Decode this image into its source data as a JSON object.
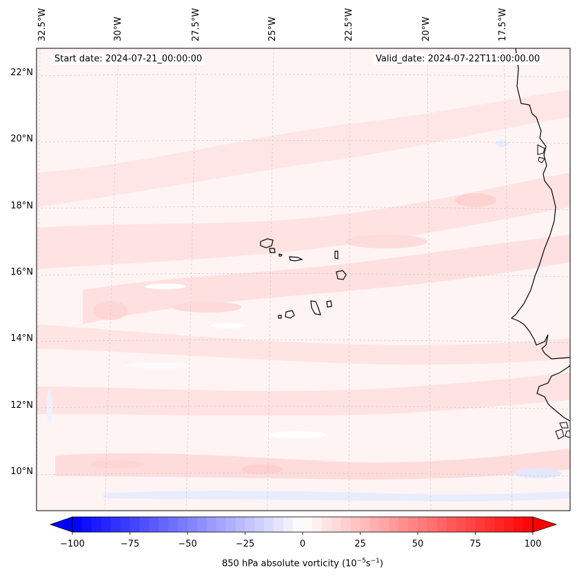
{
  "map": {
    "field": "850 hPa absolute vorticity",
    "longitude_labels": [
      "32.5°W",
      "30°W",
      "27.5°W",
      "25°W",
      "22.5°W",
      "20°W",
      "17.5°W"
    ],
    "latitude_labels": [
      "22°N",
      "20°N",
      "18°N",
      "16°N",
      "14°N",
      "12°N",
      "10°N"
    ],
    "start_date": "Start date: 2024-07-21_00:00:00",
    "valid_date": "Valid_date: 2024-07-22T11:00:00.00",
    "island_group": "Cape Verde",
    "colors": {
      "ocean_base": "#fff4f4",
      "positive_light": "#ffe3e3",
      "positive_medium": "#ffd2d2",
      "negative_light": "#eef1ff",
      "coastline": "#000000",
      "gridline": "#c8c8c8"
    }
  },
  "colorbar": {
    "ticks": [
      "−100",
      "−75",
      "−50",
      "−25",
      "0",
      "25",
      "50",
      "75",
      "100"
    ],
    "label_main": "850 hPa absolute vorticity (10",
    "label_exp1": "−5",
    "label_mid": "s",
    "label_exp2": "−1",
    "label_end": ")",
    "min_color": "#0000ff",
    "mid_color": "#ffffff",
    "max_color": "#ff0000",
    "levels": 48
  }
}
